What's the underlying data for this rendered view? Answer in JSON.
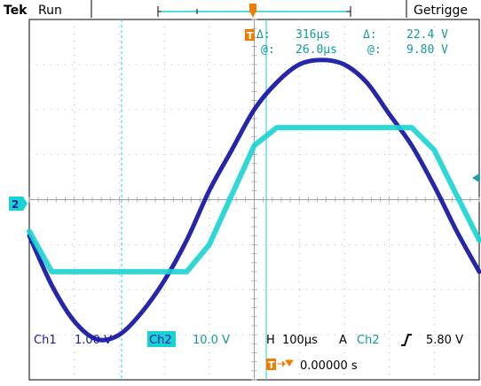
{
  "status": {
    "brand": "Tek",
    "run_state": "Run",
    "trigger_state": "Getrigge"
  },
  "cursor_readout": {
    "time_delta_label": "Δ:",
    "time_delta": "316μs",
    "time_at_label": "@:",
    "time_at": "26.0μs",
    "volt_delta_label": "Δ:",
    "volt_delta": "22.4 V",
    "volt_at_label": "@:",
    "volt_at": "9.80 V"
  },
  "channels": {
    "ch1_label": "Ch1",
    "ch1_scale": "1.00 V",
    "ch2_label": "Ch2",
    "ch2_scale": "10.0 V",
    "ch2_marker": "2"
  },
  "timebase": {
    "h_label": "H",
    "h_scale": "100μs",
    "trigger_mode": "A",
    "trigger_source": "Ch2",
    "trigger_level": "5.80 V",
    "trigger_position": "0.00000 s"
  },
  "colors": {
    "ch1": "#1a1aa6",
    "ch2": "#19d3d3",
    "text_teal": "#129a9a",
    "trigger_orange": "#f07d00",
    "grid": "#a0a0a0",
    "frame": "#000000"
  },
  "icons": {
    "trigger_marker": "trigger-t-icon",
    "rising_edge": "rising-edge-icon",
    "trigger_arrow": "orange-right-arrow-icon"
  },
  "chart_data": {
    "type": "line",
    "xlabel": "",
    "ylabel": "",
    "x_divisions": 10,
    "y_divisions": 8,
    "series": [
      {
        "name": "Ch1",
        "description_key": "sine",
        "x_div": [
          -5,
          -4.5,
          -4,
          -3.5,
          -3,
          -2.5,
          -2,
          -1.5,
          -1,
          -0.5,
          0,
          0.5,
          1,
          1.5,
          2,
          2.5,
          3,
          3.5,
          4,
          4.5,
          5
        ],
        "y_div": [
          -0.8,
          -1.9,
          -2.7,
          -3.1,
          -3.0,
          -2.5,
          -1.8,
          -0.9,
          0.2,
          1.1,
          2.0,
          2.6,
          3.0,
          3.1,
          3.0,
          2.6,
          1.9,
          1.2,
          0.3,
          -0.7,
          -1.6
        ]
      },
      {
        "name": "Ch2",
        "description_key": "clipped",
        "x_div": [
          -5,
          -4.5,
          -4,
          -3.5,
          -3,
          -2.5,
          -2,
          -1.5,
          -1,
          -0.5,
          0,
          0.5,
          1,
          2,
          3,
          3.5,
          4,
          4.5,
          5
        ],
        "y_div": [
          -0.7,
          -1.6,
          -1.6,
          -1.6,
          -1.6,
          -1.6,
          -1.6,
          -1.6,
          -1.0,
          0.1,
          1.2,
          1.6,
          1.6,
          1.6,
          1.6,
          1.6,
          1.1,
          0.1,
          -0.9
        ]
      }
    ]
  }
}
